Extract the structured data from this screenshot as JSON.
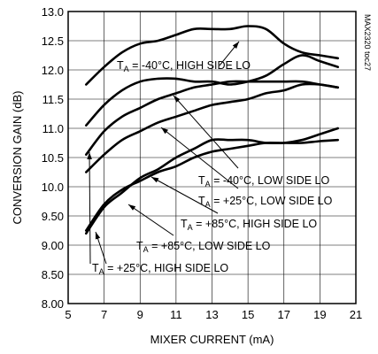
{
  "chart_data": {
    "type": "line",
    "xlabel": "MIXER CURRENT (mA)",
    "ylabel": "CONVERSION GAIN (dB)",
    "xlim": [
      5,
      21
    ],
    "ylim": [
      8.0,
      13.0
    ],
    "x_ticks": [
      "5",
      "7",
      "9",
      "11",
      "13",
      "15",
      "17",
      "19",
      "21"
    ],
    "y_ticks": [
      "8.00",
      "8.50",
      "9.00",
      "9.50",
      "10.0",
      "10.5",
      "11.0",
      "11.5",
      "12.0",
      "12.5",
      "13.0"
    ],
    "grid": true,
    "annotations": [
      {
        "T": "-40°C",
        "text": ", HIGH SIDE LO"
      },
      {
        "T": "-40°C",
        "text": ", LOW SIDE LO"
      },
      {
        "T": "+25°C",
        "text": ", LOW SIDE LO"
      },
      {
        "T": "+85°C",
        "text": ", HIGH SIDE LO"
      },
      {
        "T": "+85°C",
        "text": ", LOW SIDE LO"
      },
      {
        "T": "+25°C",
        "text": ", HIGH SIDE LO"
      }
    ],
    "series": [
      {
        "x": [
          6,
          7,
          8,
          9,
          10,
          11,
          12,
          13,
          14,
          15,
          16,
          17,
          18,
          19,
          20
        ],
        "y": [
          11.75,
          12.05,
          12.3,
          12.45,
          12.5,
          12.6,
          12.7,
          12.7,
          12.7,
          12.75,
          12.7,
          12.45,
          12.3,
          12.25,
          12.2
        ]
      },
      {
        "x": [
          6,
          7,
          8,
          9,
          10,
          11,
          12,
          13,
          14,
          15,
          16,
          17,
          18,
          19,
          20
        ],
        "y": [
          11.05,
          11.4,
          11.65,
          11.8,
          11.85,
          11.85,
          11.8,
          11.8,
          11.75,
          11.8,
          11.9,
          12.1,
          12.25,
          12.15,
          12.05
        ]
      },
      {
        "x": [
          6,
          7,
          8,
          9,
          10,
          11,
          12,
          13,
          14,
          15,
          16,
          17,
          18,
          19,
          20
        ],
        "y": [
          10.55,
          10.95,
          11.2,
          11.35,
          11.5,
          11.6,
          11.7,
          11.75,
          11.8,
          11.8,
          11.8,
          11.8,
          11.8,
          11.75,
          11.7
        ]
      },
      {
        "x": [
          6,
          7,
          8,
          9,
          10,
          11,
          12,
          13,
          14,
          15,
          16,
          17,
          18,
          19,
          20
        ],
        "y": [
          10.25,
          10.55,
          10.8,
          10.95,
          11.1,
          11.2,
          11.3,
          11.4,
          11.45,
          11.5,
          11.6,
          11.65,
          11.75,
          11.75,
          11.7
        ]
      },
      {
        "x": [
          6,
          7,
          8,
          9,
          10,
          11,
          12,
          13,
          14,
          15,
          16,
          17,
          18,
          19,
          20
        ],
        "y": [
          9.25,
          9.7,
          9.95,
          10.1,
          10.25,
          10.35,
          10.5,
          10.6,
          10.65,
          10.7,
          10.75,
          10.75,
          10.8,
          10.9,
          11.0
        ]
      },
      {
        "x": [
          6,
          7,
          8,
          9,
          10,
          11,
          12,
          13,
          14,
          15,
          16,
          17,
          18,
          19,
          20
        ],
        "y": [
          9.2,
          9.65,
          9.9,
          10.15,
          10.3,
          10.5,
          10.65,
          10.8,
          10.8,
          10.8,
          10.75,
          10.75,
          10.75,
          10.78,
          10.8
        ]
      }
    ]
  },
  "figure_code": "MAX2320 toc27"
}
